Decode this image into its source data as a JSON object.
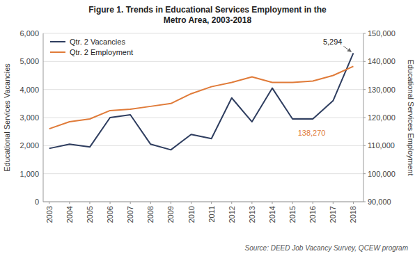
{
  "chart_data": {
    "type": "line",
    "title": [
      "Figure 1. Trends in Educational Services Employment in the",
      "Metro Area, 2003-2018"
    ],
    "x": [
      2003,
      2004,
      2005,
      2006,
      2007,
      2008,
      2009,
      2010,
      2011,
      2012,
      2013,
      2014,
      2015,
      2016,
      2017,
      2018
    ],
    "xlim": [
      2002.7,
      2018.5
    ],
    "xticks": [
      2003,
      2004,
      2005,
      2006,
      2007,
      2008,
      2009,
      2010,
      2011,
      2012,
      2013,
      2014,
      2015,
      2016,
      2017,
      2018
    ],
    "ylabel": "Educational Services Vacancies",
    "y2label": "Educational Services Employment",
    "ylim": [
      0,
      6000
    ],
    "yticks": [
      0,
      {
        "value": 1000,
        "label": "1,000"
      },
      {
        "value": 2000,
        "label": "2,000"
      },
      {
        "value": 3000,
        "label": "3,000"
      },
      {
        "value": 4000,
        "label": "4,000"
      },
      {
        "value": 5000,
        "label": "5,000"
      },
      {
        "value": 6000,
        "label": "6,000"
      }
    ],
    "y2lim": [
      90000,
      150000
    ],
    "y2ticks": [
      {
        "value": 90000,
        "label": "90,000"
      },
      {
        "value": 100000,
        "label": "100,000"
      },
      {
        "value": 110000,
        "label": "110,000"
      },
      {
        "value": 120000,
        "label": "120,000"
      },
      {
        "value": 130000,
        "label": "130,000"
      },
      {
        "value": 140000,
        "label": "140,000"
      },
      {
        "value": 150000,
        "label": "150,000"
      }
    ],
    "series": [
      {
        "name": "Qtr. 2 Vacancies",
        "color": "#2E3D5F",
        "values": [
          1900,
          2050,
          1950,
          3000,
          3100,
          2050,
          1850,
          2400,
          2250,
          3700,
          2850,
          4050,
          2950,
          2950,
          3600,
          5294
        ]
      },
      {
        "name": "Qtr. 2 Employment",
        "color": "#E07B39",
        "axis": "y2",
        "values": [
          116000,
          118500,
          119500,
          122500,
          123000,
          124000,
          125000,
          128500,
          131000,
          132500,
          134500,
          132500,
          132500,
          133000,
          135000,
          138270
        ]
      }
    ],
    "annotations": [
      {
        "text": "5,294",
        "x": 2018,
        "y": 5294,
        "arrow": true
      },
      {
        "text": "138,270",
        "x": 2018,
        "y": 138270,
        "axis": "y2",
        "color": "#E07B39"
      }
    ],
    "source": "Source: DEED Job Vacancy Survey, QCEW program",
    "grid": true,
    "legend": "upper left"
  }
}
